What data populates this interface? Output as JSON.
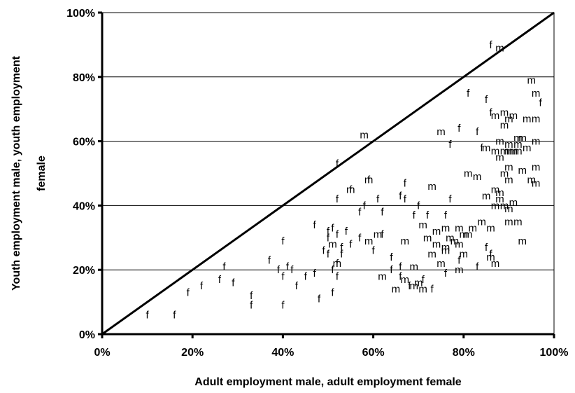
{
  "chart_data": {
    "type": "scatter",
    "title": "",
    "xlabel": "Adult employment male, adult employment female",
    "ylabel_lines": [
      "Youth employment male, youth employment",
      "female"
    ],
    "x_ticks": [
      "0%",
      "20%",
      "40%",
      "60%",
      "80%",
      "100%"
    ],
    "y_ticks": [
      "0%",
      "20%",
      "40%",
      "60%",
      "80%",
      "100%"
    ],
    "xlim": [
      0,
      100
    ],
    "ylim": [
      0,
      100
    ],
    "grid": "horizontal",
    "reference_line": {
      "x": [
        0,
        100
      ],
      "y": [
        0,
        100
      ]
    },
    "series": [
      {
        "name": "m",
        "points": [
          [
            88,
            89
          ],
          [
            95,
            79
          ],
          [
            96,
            75
          ],
          [
            89,
            69
          ],
          [
            91,
            68
          ],
          [
            96,
            67
          ],
          [
            87,
            68
          ],
          [
            90,
            67
          ],
          [
            94,
            67
          ],
          [
            89,
            65
          ],
          [
            75,
            63
          ],
          [
            92,
            61
          ],
          [
            93,
            61
          ],
          [
            88,
            60
          ],
          [
            90,
            59
          ],
          [
            92,
            59
          ],
          [
            96,
            60
          ],
          [
            58,
            62
          ],
          [
            85,
            58
          ],
          [
            91,
            57
          ],
          [
            94,
            58
          ],
          [
            87,
            57
          ],
          [
            89,
            57
          ],
          [
            90,
            57
          ],
          [
            92,
            57
          ],
          [
            88,
            55
          ],
          [
            90,
            52
          ],
          [
            96,
            52
          ],
          [
            81,
            50
          ],
          [
            89,
            50
          ],
          [
            93,
            51
          ],
          [
            83,
            49
          ],
          [
            90,
            48
          ],
          [
            95,
            48
          ],
          [
            59,
            48
          ],
          [
            55,
            45
          ],
          [
            73,
            46
          ],
          [
            96,
            47
          ],
          [
            87,
            45
          ],
          [
            88,
            44
          ],
          [
            85,
            43
          ],
          [
            88,
            42
          ],
          [
            87,
            40
          ],
          [
            89,
            40
          ],
          [
            91,
            41
          ],
          [
            90,
            39
          ],
          [
            84,
            35
          ],
          [
            90,
            35
          ],
          [
            92,
            35
          ],
          [
            71,
            34
          ],
          [
            82,
            33
          ],
          [
            79,
            33
          ],
          [
            81,
            31
          ],
          [
            76,
            33
          ],
          [
            86,
            33
          ],
          [
            74,
            32
          ],
          [
            80,
            31
          ],
          [
            77,
            30
          ],
          [
            78,
            29
          ],
          [
            61,
            31
          ],
          [
            72,
            30
          ],
          [
            74,
            28
          ],
          [
            76,
            27
          ],
          [
            79,
            28
          ],
          [
            76,
            26
          ],
          [
            80,
            25
          ],
          [
            86,
            24
          ],
          [
            87,
            22
          ],
          [
            73,
            25
          ],
          [
            75,
            22
          ],
          [
            69,
            21
          ],
          [
            79,
            20
          ],
          [
            62,
            18
          ],
          [
            67,
            17
          ],
          [
            70,
            16
          ],
          [
            69,
            15
          ],
          [
            71,
            14
          ],
          [
            65,
            14
          ],
          [
            59,
            29
          ],
          [
            93,
            29
          ],
          [
            67,
            29
          ],
          [
            51,
            28
          ],
          [
            52,
            22
          ]
        ]
      },
      {
        "name": "f",
        "points": [
          [
            86,
            90
          ],
          [
            81,
            75
          ],
          [
            85,
            73
          ],
          [
            97,
            72
          ],
          [
            86,
            69
          ],
          [
            83,
            63
          ],
          [
            79,
            64
          ],
          [
            77,
            59
          ],
          [
            84,
            58
          ],
          [
            59,
            48
          ],
          [
            52,
            53
          ],
          [
            55,
            45
          ],
          [
            67,
            47
          ],
          [
            66,
            43
          ],
          [
            61,
            42
          ],
          [
            67,
            42
          ],
          [
            62,
            38
          ],
          [
            58,
            40
          ],
          [
            57,
            38
          ],
          [
            69,
            37
          ],
          [
            70,
            40
          ],
          [
            72,
            37
          ],
          [
            76,
            37
          ],
          [
            77,
            42
          ],
          [
            52,
            42
          ],
          [
            57,
            30
          ],
          [
            55,
            28
          ],
          [
            49,
            26
          ],
          [
            50,
            30
          ],
          [
            52,
            31
          ],
          [
            53,
            27
          ],
          [
            47,
            34
          ],
          [
            50,
            32
          ],
          [
            51,
            33
          ],
          [
            54,
            32
          ],
          [
            50,
            25
          ],
          [
            52,
            22
          ],
          [
            53,
            25
          ],
          [
            40,
            29
          ],
          [
            37,
            23
          ],
          [
            39,
            20
          ],
          [
            40,
            18
          ],
          [
            27,
            21
          ],
          [
            26,
            17
          ],
          [
            29,
            16
          ],
          [
            22,
            15
          ],
          [
            19,
            13
          ],
          [
            33,
            12
          ],
          [
            33,
            9
          ],
          [
            40,
            9
          ],
          [
            48,
            11
          ],
          [
            51,
            13
          ],
          [
            41,
            21
          ],
          [
            42,
            20
          ],
          [
            47,
            19
          ],
          [
            45,
            18
          ],
          [
            43,
            15
          ],
          [
            51,
            20
          ],
          [
            52,
            18
          ],
          [
            66,
            21
          ],
          [
            66,
            18
          ],
          [
            68,
            15
          ],
          [
            71,
            17
          ],
          [
            73,
            14
          ],
          [
            64,
            20
          ],
          [
            62,
            31
          ],
          [
            64,
            24
          ],
          [
            60,
            26
          ],
          [
            86,
            25
          ],
          [
            85,
            27
          ],
          [
            79,
            23
          ],
          [
            83,
            21
          ],
          [
            76,
            19
          ],
          [
            10,
            6
          ],
          [
            16,
            6
          ]
        ]
      }
    ]
  }
}
